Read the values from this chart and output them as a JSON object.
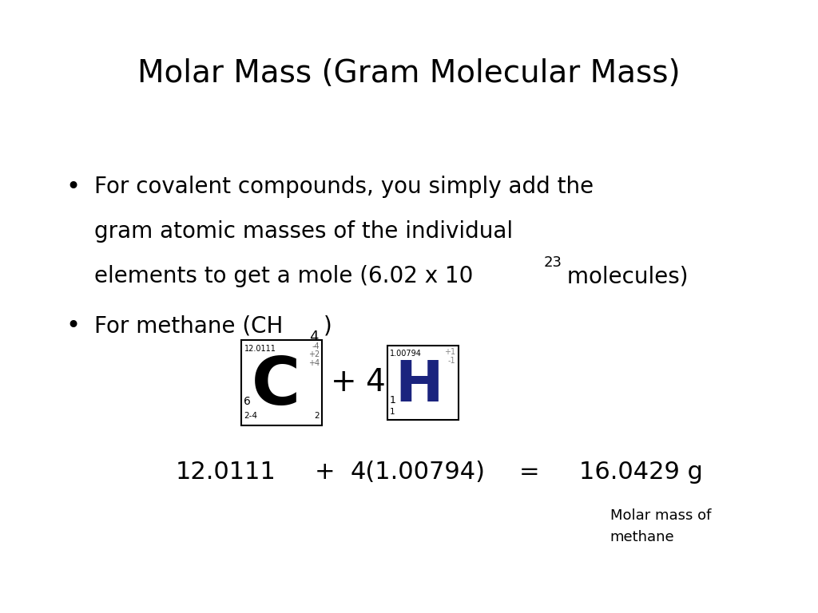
{
  "title": "Molar Mass (Gram Molecular Mass)",
  "title_fontsize": 28,
  "bg_color": "#ffffff",
  "text_color": "#000000",
  "bullet1_line1": "For covalent compounds, you simply add the",
  "bullet1_line2": "gram atomic masses of the individual",
  "bullet1_line3": "elements to get a mole (6.02 x 10",
  "bullet1_exp": "23",
  "bullet1_end": " molecules)",
  "bullet2_main": "For methane (CH",
  "bullet2_sub": "4",
  "bullet2_end": ")",
  "bullet_fontsize": 20,
  "carbon_symbol": "C",
  "carbon_mass": "12.0111",
  "carbon_num": "6",
  "carbon_ox1": "-4",
  "carbon_ox2": "+2",
  "carbon_ox3": "+4",
  "carbon_config": "2-4",
  "carbon_period": "2",
  "hydrogen_symbol": "H",
  "hydrogen_mass": "1.00794",
  "hydrogen_ox1": "+1",
  "hydrogen_ox2": "-1",
  "hydrogen_config1": "1",
  "hydrogen_config2": "1",
  "eq_fontsize": 22,
  "molar_mass_label": "Molar mass of\nmethane",
  "molar_mass_fontsize": 13
}
